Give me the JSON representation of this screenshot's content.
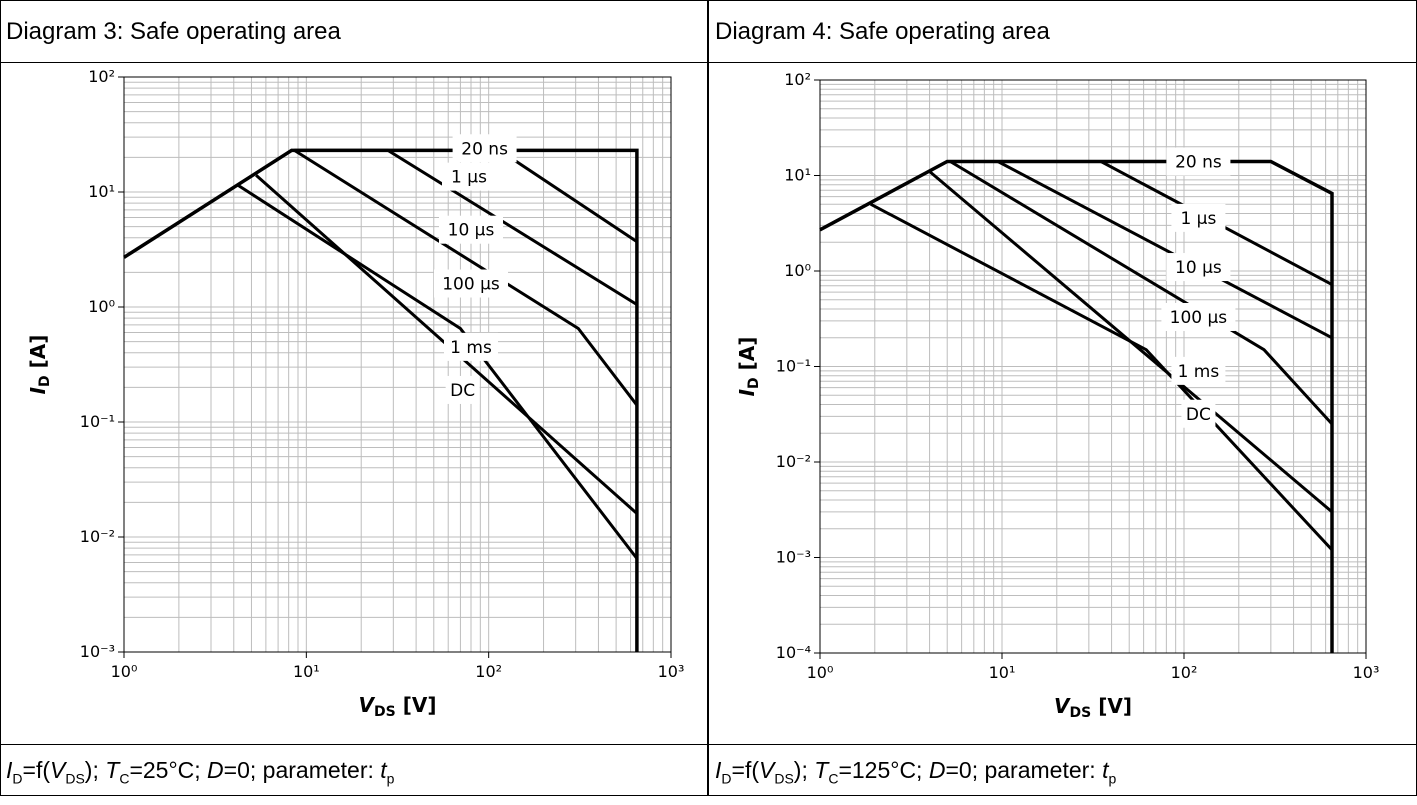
{
  "chart_data": [
    {
      "type": "line",
      "title": "Diagram 3: Safe operating area",
      "caption": {
        "i1": "I",
        "s1": "D",
        "t1": "=f(",
        "i2": "V",
        "s2": "DS",
        "t2": "); ",
        "i3": "T",
        "s3": "C",
        "t3": "=25°C; ",
        "i4": "D",
        "t4": "=0; parameter: ",
        "i5": "t",
        "s5": "p"
      },
      "xscale": "log",
      "yscale": "log",
      "xlim": [
        1,
        1000
      ],
      "ylim": [
        0.001,
        100
      ],
      "xticks": [
        1,
        10,
        100,
        1000
      ],
      "yticks": [
        0.001,
        0.01,
        0.1,
        1,
        10,
        100
      ],
      "xlabel": {
        "main": "V",
        "sub": "DS",
        "unit": " [V]"
      },
      "ylabel": {
        "main": "I",
        "sub": "D",
        "unit": " [A]"
      },
      "grid": true,
      "series": [
        {
          "name": "20 ns",
          "points": [
            [
              1,
              2.7
            ],
            [
              8.3,
              23
            ],
            [
              650,
              23
            ],
            [
              650,
              0.001
            ]
          ]
        },
        {
          "name": "1 µs",
          "points": [
            [
              8.6,
              23
            ],
            [
              115,
              23
            ],
            [
              650,
              3.7
            ]
          ]
        },
        {
          "name": "10 µs",
          "points": [
            [
              8.6,
              23
            ],
            [
              28,
              23
            ],
            [
              650,
              1.05
            ]
          ]
        },
        {
          "name": "100 µs",
          "points": [
            [
              8.6,
              23
            ],
            [
              310,
              0.65
            ],
            [
              650,
              0.14
            ]
          ]
        },
        {
          "name": "1 ms",
          "points": [
            [
              5.3,
              14
            ],
            [
              650,
              0.016
            ]
          ]
        },
        {
          "name": "DC",
          "points": [
            [
              4.2,
              11.5
            ],
            [
              70,
              0.65
            ],
            [
              650,
              0.0065
            ]
          ]
        }
      ],
      "labels": [
        {
          "text": "20 ns",
          "x": 95,
          "y": 24
        },
        {
          "text": "1 µs",
          "x": 78,
          "y": 13.6
        },
        {
          "text": "10 µs",
          "x": 80,
          "y": 4.7
        },
        {
          "text": "100 µs",
          "x": 80,
          "y": 1.6
        },
        {
          "text": "1 ms",
          "x": 80,
          "y": 0.45
        },
        {
          "text": "DC",
          "x": 72,
          "y": 0.19
        }
      ]
    },
    {
      "type": "line",
      "title": "Diagram 4: Safe operating area",
      "caption": {
        "i1": "I",
        "s1": "D",
        "t1": "=f(",
        "i2": "V",
        "s2": "DS",
        "t2": "); ",
        "i3": "T",
        "s3": "C",
        "t3": "=125°C; ",
        "i4": "D",
        "t4": "=0; parameter: ",
        "i5": "t",
        "s5": "p"
      },
      "xscale": "log",
      "yscale": "log",
      "xlim": [
        1,
        1000
      ],
      "ylim": [
        0.0001,
        100
      ],
      "xticks": [
        1,
        10,
        100,
        1000
      ],
      "yticks": [
        0.0001,
        0.001,
        0.01,
        0.1,
        1,
        10,
        100
      ],
      "xlabel": {
        "main": "V",
        "sub": "DS",
        "unit": " [V]"
      },
      "ylabel": {
        "main": "I",
        "sub": "D",
        "unit": " [A]"
      },
      "grid": true,
      "series": [
        {
          "name": "20 ns",
          "points": [
            [
              1,
              2.7
            ],
            [
              5,
              14
            ],
            [
              300,
              14
            ],
            [
              650,
              6.5
            ],
            [
              650,
              0.0001
            ]
          ]
        },
        {
          "name": "1 µs",
          "points": [
            [
              5.2,
              14
            ],
            [
              35,
              14
            ],
            [
              650,
              0.72
            ]
          ]
        },
        {
          "name": "10 µs",
          "points": [
            [
              5.2,
              14
            ],
            [
              9.5,
              14
            ],
            [
              650,
              0.2
            ]
          ]
        },
        {
          "name": "100 µs",
          "points": [
            [
              5.2,
              14
            ],
            [
              275,
              0.15
            ],
            [
              650,
              0.025
            ]
          ]
        },
        {
          "name": "1 ms",
          "points": [
            [
              4,
              11
            ],
            [
              650,
              0.003
            ]
          ]
        },
        {
          "name": "DC",
          "points": [
            [
              1.9,
              5
            ],
            [
              62,
              0.15
            ],
            [
              650,
              0.0012
            ]
          ]
        }
      ],
      "labels": [
        {
          "text": "20 ns",
          "x": 120,
          "y": 14
        },
        {
          "text": "1 µs",
          "x": 120,
          "y": 3.6
        },
        {
          "text": "10 µs",
          "x": 120,
          "y": 1.1
        },
        {
          "text": "100 µs",
          "x": 120,
          "y": 0.33
        },
        {
          "text": "1 ms",
          "x": 120,
          "y": 0.09
        },
        {
          "text": "DC",
          "x": 120,
          "y": 0.032
        }
      ]
    }
  ]
}
